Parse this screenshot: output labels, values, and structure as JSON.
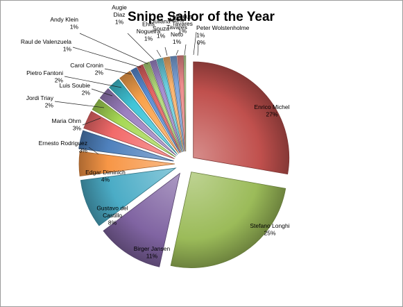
{
  "chart_data": {
    "type": "pie",
    "title": "Snipe Sailor of the Year",
    "exploded": true,
    "style": "3d-bevel",
    "slices": [
      {
        "name": "Enrico Michel",
        "percent": "27%",
        "value": 27,
        "color": "#c0504d"
      },
      {
        "name": "Stefano Longhi",
        "percent": "25%",
        "value": 25,
        "color": "#9bbb59"
      },
      {
        "name": "Birger Jansen",
        "percent": "11%",
        "value": 11,
        "color": "#8064a2"
      },
      {
        "name": "Gustavo del Castillo",
        "percent": "8%",
        "value": 8,
        "color": "#4bacc6"
      },
      {
        "name": "Edgar Diminich",
        "percent": "4%",
        "value": 4,
        "color": "#f79646"
      },
      {
        "name": "Ernesto Rodriguez",
        "percent": "3%",
        "value": 3,
        "color": "#4f81bd"
      },
      {
        "name": "Maria Ohrn",
        "percent": "3%",
        "value": 3,
        "color": "#f26a6a"
      },
      {
        "name": "Jordi Triay",
        "percent": "2%",
        "value": 2,
        "color": "#a6d854"
      },
      {
        "name": "Luis Soubie",
        "percent": "2%",
        "value": 2,
        "color": "#9b7fc0"
      },
      {
        "name": "Pietro Fantoni",
        "percent": "2%",
        "value": 2,
        "color": "#40c5d8"
      },
      {
        "name": "Carol Cronin",
        "percent": "2%",
        "value": 2,
        "color": "#f9a24b"
      },
      {
        "name": "Raul de Valenzuela",
        "percent": "1%",
        "value": 1,
        "color": "#5b8ed6"
      },
      {
        "name": "Andy Klein",
        "percent": "1%",
        "value": 1,
        "color": "#e36464"
      },
      {
        "name": "Augie Diaz",
        "percent": "1%",
        "value": 1,
        "color": "#b2d97a"
      },
      {
        "name": "Elvis Nogueira",
        "percent": "1%",
        "value": 1,
        "color": "#a58ccf"
      },
      {
        "name": "Juliana Souza",
        "percent": "1%",
        "value": 1,
        "color": "#6ccfe0"
      },
      {
        "name": "Mario Tavares Neto",
        "percent": "1%",
        "value": 1,
        "color": "#f9b46e"
      },
      {
        "name": "Mateus Tavares",
        "percent": "1%",
        "value": 1,
        "color": "#7ea6de"
      },
      {
        "name": "Peter Wolstenholme",
        "percent": "1%",
        "value": 1,
        "color": "#ee8c8c"
      },
      {
        "name": "",
        "percent": "0%",
        "value": 0.3,
        "color": "#c5e0a0"
      }
    ]
  }
}
